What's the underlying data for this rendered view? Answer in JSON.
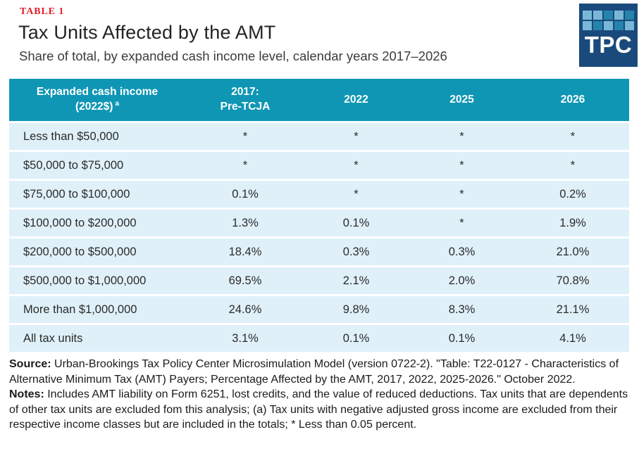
{
  "header": {
    "table_label": "TABLE 1",
    "title": "Tax Units Affected by the AMT",
    "subtitle": "Share of total, by expanded cash income level, calendar years 2017–2026"
  },
  "logo": {
    "text": "TPC",
    "grid": [
      "light",
      "light",
      "dark",
      "light",
      "dark",
      "light",
      "dark",
      "light",
      "dark",
      "light"
    ]
  },
  "chart_data": {
    "type": "table",
    "title": "Tax Units Affected by the AMT",
    "subtitle": "Share of total, by expanded cash income level, calendar years 2017–2026",
    "columns": [
      {
        "line1": "Expanded cash income",
        "line2": "(2022$)",
        "sup": "a"
      },
      {
        "line1": "2017:",
        "line2": "Pre-TCJA"
      },
      {
        "line1": "2022"
      },
      {
        "line1": "2025"
      },
      {
        "line1": "2026"
      }
    ],
    "rows": [
      {
        "label": "Less than $50,000",
        "values": [
          "*",
          "*",
          "*",
          "*"
        ]
      },
      {
        "label": "$50,000 to $75,000",
        "values": [
          "*",
          "*",
          "*",
          "*"
        ]
      },
      {
        "label": "$75,000 to $100,000",
        "values": [
          "0.1%",
          "*",
          "*",
          "0.2%"
        ]
      },
      {
        "label": "$100,000 to $200,000",
        "values": [
          "1.3%",
          "0.1%",
          "*",
          "1.9%"
        ]
      },
      {
        "label": "$200,000 to $500,000",
        "values": [
          "18.4%",
          "0.3%",
          "0.3%",
          "21.0%"
        ]
      },
      {
        "label": "$500,000 to $1,000,000",
        "values": [
          "69.5%",
          "2.1%",
          "2.0%",
          "70.8%"
        ]
      },
      {
        "label": "More than $1,000,000",
        "values": [
          "24.6%",
          "9.8%",
          "8.3%",
          "21.1%"
        ]
      },
      {
        "label": "All tax units",
        "values": [
          "3.1%",
          "0.1%",
          "0.1%",
          "4.1%"
        ]
      }
    ]
  },
  "footer": {
    "source_label": "Source:",
    "source_text": " Urban-Brookings Tax Policy Center Microsimulation Model (version 0722-2). \"Table: T22-0127 - Characteristics of Alternative Minimum Tax (AMT) Payers; Percentage Affected by the AMT, 2017, 2022, 2025-2026.\" October 2022.",
    "notes_label": "Notes:",
    "notes_text": " Includes AMT liability on Form 6251, lost credits, and the value of reduced deductions. Tax units that are dependents of other tax units are excluded fom this analysis; (a) Tax units with negative adjusted gross income are excluded from their respective income classes but are included in the totals; * Less than 0.05 percent."
  },
  "colors": {
    "header_teal": "#0f96b4",
    "row_light_blue": "#dff0f8",
    "table_label_red": "#e21d25",
    "logo_navy": "#1a4a7c",
    "logo_light_square": "#79b7d9",
    "logo_dark_square": "#2583ac"
  }
}
